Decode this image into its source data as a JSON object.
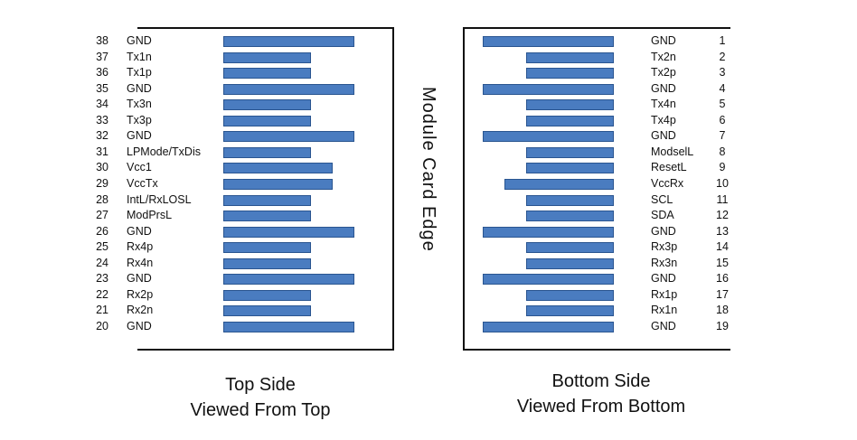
{
  "edge_label": "Module Card Edge",
  "top_side": {
    "caption_line1": "Top Side",
    "caption_line2": "Viewed From Top",
    "pins": [
      {
        "num": "38",
        "label": "GND",
        "length": "long"
      },
      {
        "num": "37",
        "label": "Tx1n",
        "length": "short"
      },
      {
        "num": "36",
        "label": "Tx1p",
        "length": "short"
      },
      {
        "num": "35",
        "label": "GND",
        "length": "long"
      },
      {
        "num": "34",
        "label": "Tx3n",
        "length": "short"
      },
      {
        "num": "33",
        "label": "Tx3p",
        "length": "short"
      },
      {
        "num": "32",
        "label": "GND",
        "length": "long"
      },
      {
        "num": "31",
        "label": "LPMode/TxDis",
        "length": "short"
      },
      {
        "num": "30",
        "label": "Vcc1",
        "length": "medium"
      },
      {
        "num": "29",
        "label": "VccTx",
        "length": "medium"
      },
      {
        "num": "28",
        "label": "IntL/RxLOSL",
        "length": "short"
      },
      {
        "num": "27",
        "label": "ModPrsL",
        "length": "short"
      },
      {
        "num": "26",
        "label": "GND",
        "length": "long"
      },
      {
        "num": "25",
        "label": "Rx4p",
        "length": "short"
      },
      {
        "num": "24",
        "label": "Rx4n",
        "length": "short"
      },
      {
        "num": "23",
        "label": "GND",
        "length": "long"
      },
      {
        "num": "22",
        "label": "Rx2p",
        "length": "short"
      },
      {
        "num": "21",
        "label": "Rx2n",
        "length": "short"
      },
      {
        "num": "20",
        "label": "GND",
        "length": "long"
      }
    ]
  },
  "bottom_side": {
    "caption_line1": "Bottom Side",
    "caption_line2": "Viewed From Bottom",
    "pins": [
      {
        "num": "1",
        "label": "GND",
        "length": "long"
      },
      {
        "num": "2",
        "label": "Tx2n",
        "length": "short"
      },
      {
        "num": "3",
        "label": "Tx2p",
        "length": "short"
      },
      {
        "num": "4",
        "label": "GND",
        "length": "long"
      },
      {
        "num": "5",
        "label": "Tx4n",
        "length": "short"
      },
      {
        "num": "6",
        "label": "Tx4p",
        "length": "short"
      },
      {
        "num": "7",
        "label": "GND",
        "length": "long"
      },
      {
        "num": "8",
        "label": "ModselL",
        "length": "short"
      },
      {
        "num": "9",
        "label": "ResetL",
        "length": "short"
      },
      {
        "num": "10",
        "label": "VccRx",
        "length": "medium"
      },
      {
        "num": "11",
        "label": "SCL",
        "length": "short"
      },
      {
        "num": "12",
        "label": "SDA",
        "length": "short"
      },
      {
        "num": "13",
        "label": "GND",
        "length": "long"
      },
      {
        "num": "14",
        "label": "Rx3p",
        "length": "short"
      },
      {
        "num": "15",
        "label": "Rx3n",
        "length": "short"
      },
      {
        "num": "16",
        "label": "GND",
        "length": "long"
      },
      {
        "num": "17",
        "label": "Rx1p",
        "length": "short"
      },
      {
        "num": "18",
        "label": "Rx1n",
        "length": "short"
      },
      {
        "num": "19",
        "label": "GND",
        "length": "long"
      }
    ]
  },
  "colors": {
    "pad_fill": "#4a7cc0",
    "pad_border": "#2a5590",
    "frame": "#111111"
  }
}
